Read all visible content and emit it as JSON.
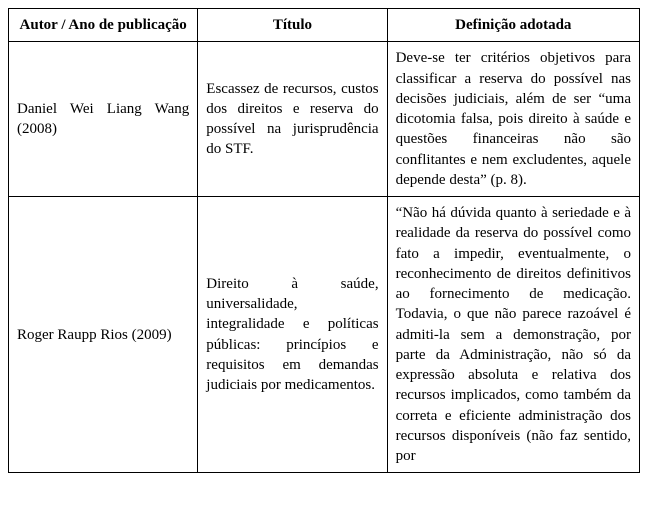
{
  "table": {
    "columns": [
      {
        "key": "author_year",
        "header": "Autor / Ano de publicação"
      },
      {
        "key": "title",
        "header": "Título"
      },
      {
        "key": "definition",
        "header": "Definição adotada"
      }
    ],
    "rows": [
      {
        "author_year": "Daniel Wei Liang Wang (2008)",
        "title": "Escassez de recursos, custos dos direitos e reserva do possível na jurisprudência do STF.",
        "definition": "Deve-se ter critérios objetivos para classificar a reserva do possível nas decisões judiciais, além de ser “uma dicotomia falsa, pois direito à saúde e questões financeiras não são conflitantes e nem excludentes, aquele depende desta” (p. 8)."
      },
      {
        "author_year": "Roger Raupp Rios (2009)",
        "title": "Direito à saúde, universalidade, integralidade e políticas públicas: princípios e requisitos em demandas judiciais por medicamentos.",
        "definition": "“Não há dúvida quanto à seriedade e à realidade da reserva do possível como fato a impedir, eventualmente, o reconhecimento de direitos definitivos ao fornecimento de medicação. Todavia, o que não parece razoável é admiti-la sem a demonstração, por parte da Administração, não só da expressão absoluta e relativa dos recursos implicados, como também da correta e eficiente administração dos recursos disponíveis (não faz sentido, por"
      }
    ],
    "style": {
      "font_family": "Times New Roman",
      "header_fontsize_pt": 15,
      "cell_fontsize_pt": 15,
      "border_color": "#000000",
      "background_color": "#ffffff",
      "column_widths_pct": [
        30,
        30,
        40
      ]
    }
  }
}
